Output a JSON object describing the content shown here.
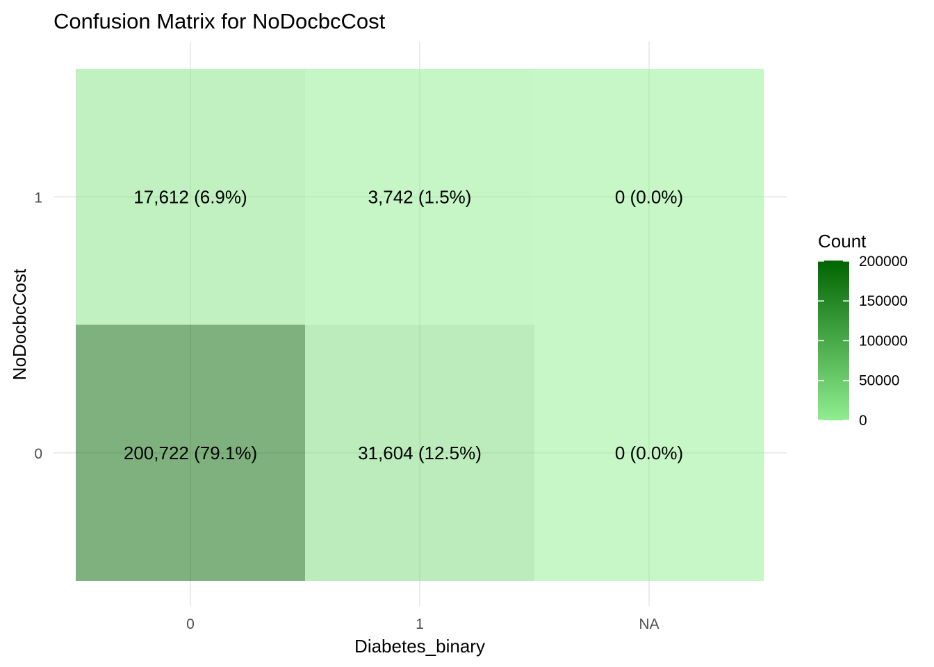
{
  "chart_data": {
    "type": "heatmap",
    "title": "Confusion Matrix for NoDocbcCost",
    "xlabel": "Diabetes_binary",
    "ylabel": "NoDocbcCost",
    "x_categories": [
      "0",
      "1",
      "NA"
    ],
    "y_categories": [
      "0",
      "1"
    ],
    "cells": [
      {
        "x": "0",
        "y": "1",
        "count": 17612,
        "label": "17,612 (6.9%)"
      },
      {
        "x": "1",
        "y": "1",
        "count": 3742,
        "label": "3,742 (1.5%)"
      },
      {
        "x": "NA",
        "y": "1",
        "count": 0,
        "label": "0 (0.0%)"
      },
      {
        "x": "0",
        "y": "0",
        "count": 200722,
        "label": "200,722 (79.1%)"
      },
      {
        "x": "1",
        "y": "0",
        "count": 31604,
        "label": "31,604 (12.5%)"
      },
      {
        "x": "NA",
        "y": "0",
        "count": 0,
        "label": "0 (0.0%)"
      }
    ],
    "legend": {
      "title": "Count",
      "ticks": [
        0,
        50000,
        100000,
        150000,
        200000
      ],
      "tick_labels": [
        "0",
        "50000",
        "100000",
        "150000",
        "200000"
      ],
      "range": [
        0,
        200722
      ],
      "color_low": "#90ee90",
      "color_high": "#006400",
      "position": "right"
    },
    "tile_opacity": 0.5,
    "grid": true
  }
}
